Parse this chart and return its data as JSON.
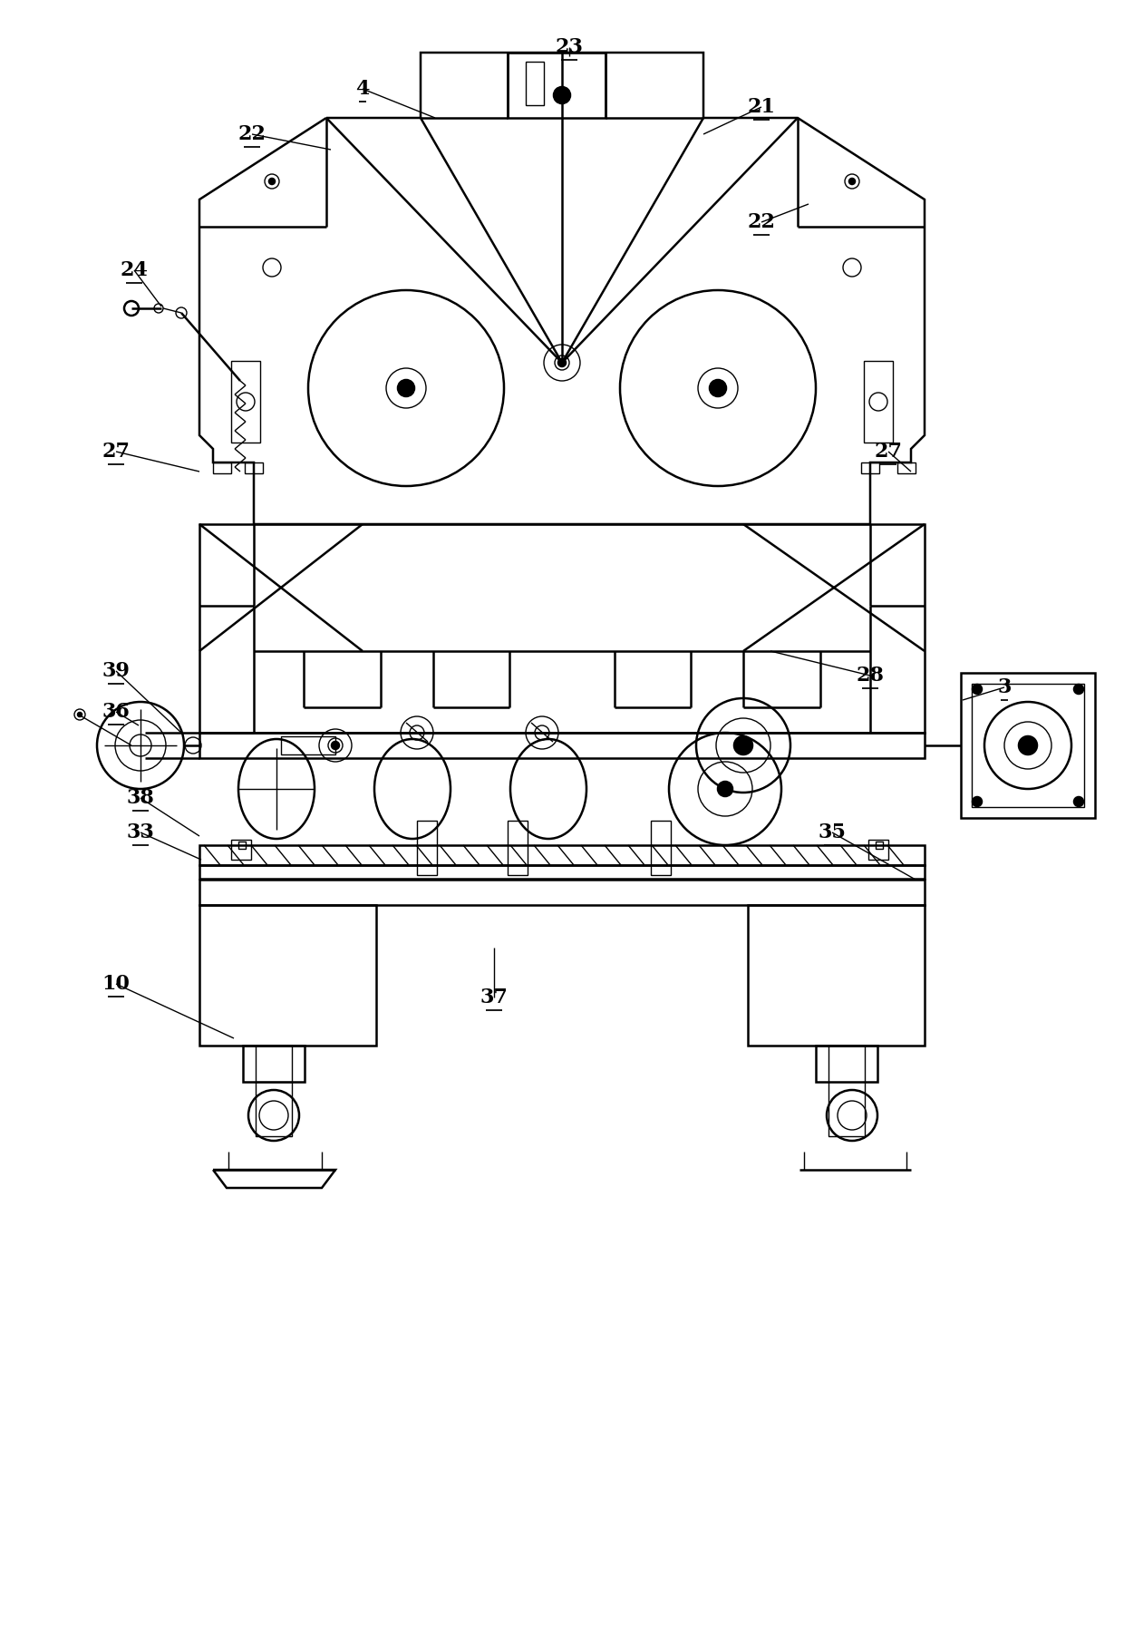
{
  "bg_color": "#ffffff",
  "line_color": "#000000",
  "lw_main": 1.8,
  "lw_thin": 1.0,
  "label_fs": 16,
  "labels": [
    [
      "23",
      628,
      52
    ],
    [
      "4",
      400,
      98
    ],
    [
      "21",
      840,
      118
    ],
    [
      "22",
      278,
      148
    ],
    [
      "22",
      840,
      245
    ],
    [
      "24",
      148,
      298
    ],
    [
      "27",
      128,
      498
    ],
    [
      "27",
      980,
      498
    ],
    [
      "39",
      128,
      740
    ],
    [
      "36",
      128,
      785
    ],
    [
      "28",
      960,
      745
    ],
    [
      "3",
      1108,
      758
    ],
    [
      "38",
      155,
      880
    ],
    [
      "33",
      155,
      918
    ],
    [
      "35",
      918,
      918
    ],
    [
      "10",
      128,
      1085
    ],
    [
      "37",
      545,
      1100
    ]
  ]
}
